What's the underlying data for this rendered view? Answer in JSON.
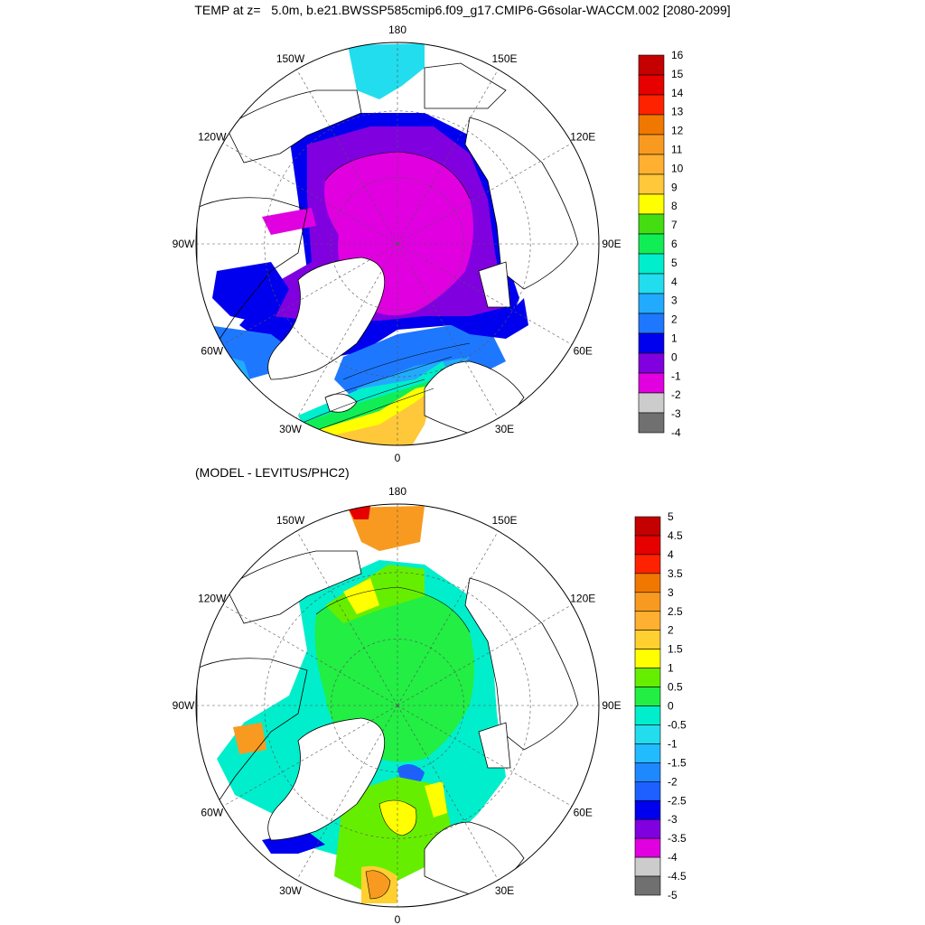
{
  "title": "TEMP at z=   5.0m, b.e21.BWSSP585cmip6.f09_g17.CMIP6-G6solar-WACCM.002 [2080-2099]",
  "subtitle": "(MODEL - LEVITUS/PHC2)",
  "longitude_labels": [
    "180",
    "150E",
    "120E",
    "90E",
    "60E",
    "30E",
    "0",
    "30W",
    "60W",
    "90W",
    "120W",
    "150W"
  ],
  "panels": [
    {
      "name": "model-temperature",
      "colorbar": {
        "labels": [
          "16",
          "15",
          "14",
          "13",
          "12",
          "11",
          "10",
          "9",
          "8",
          "7",
          "6",
          "5",
          "4",
          "3",
          "2",
          "1",
          "0",
          "-1",
          "-2",
          "-3",
          "-4"
        ],
        "colors": [
          "#c40000",
          "#e60000",
          "#ff2200",
          "#f07800",
          "#f89a20",
          "#ffb030",
          "#ffc83a",
          "#ffff00",
          "#44dd11",
          "#11ee55",
          "#00eecc",
          "#22ddee",
          "#22aaff",
          "#1e78ff",
          "#0000ee",
          "#8000e0",
          "#e000e0",
          "#cccccc",
          "#707070"
        ]
      }
    },
    {
      "name": "model-minus-levitus",
      "colorbar": {
        "labels": [
          "5",
          "4.5",
          "4",
          "3.5",
          "3",
          "2.5",
          "2",
          "1.5",
          "1",
          "0.5",
          "0",
          "-0.5",
          "-1",
          "-1.5",
          "-2",
          "-2.5",
          "-3",
          "-3.5",
          "-4",
          "-4.5",
          "-5"
        ],
        "colors": [
          "#c40000",
          "#e60000",
          "#ff2200",
          "#f07800",
          "#f89a20",
          "#ffb030",
          "#ffd030",
          "#ffff00",
          "#66ee00",
          "#22ee44",
          "#00eecc",
          "#22ddee",
          "#22bbff",
          "#1e88ff",
          "#1e60ff",
          "#0000ee",
          "#8000e0",
          "#e000e0",
          "#cccccc",
          "#707070"
        ]
      }
    }
  ]
}
